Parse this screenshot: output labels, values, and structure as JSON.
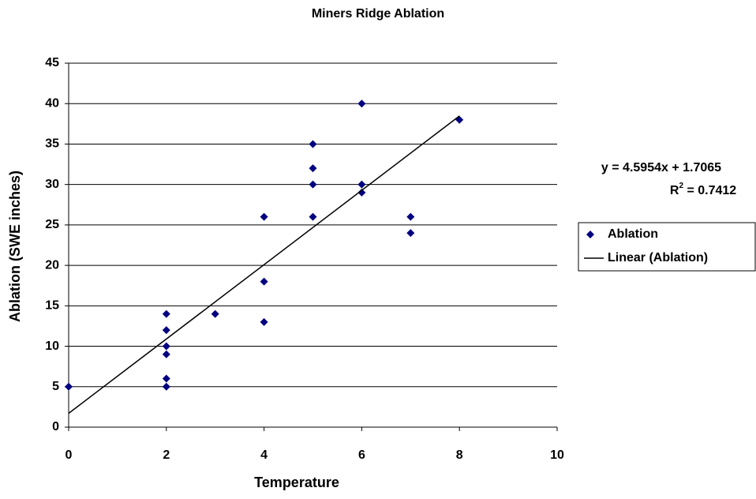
{
  "chart_data": {
    "type": "scatter",
    "title": "Miners Ridge Ablation",
    "x_label": "Temperature",
    "y_label": "Ablation (SWE inches)",
    "series": [
      {
        "name": "Ablation",
        "color": "#000080",
        "x": [
          0,
          2,
          2,
          2,
          2,
          2,
          2,
          3,
          4,
          4,
          4,
          5,
          5,
          5,
          5,
          6,
          6,
          6,
          7,
          7,
          8
        ],
        "values": [
          5,
          14,
          12,
          10,
          9,
          6,
          5,
          14,
          26,
          18,
          13,
          35,
          32,
          30,
          26,
          40,
          30,
          29,
          26,
          24,
          38
        ]
      }
    ],
    "trendline": {
      "name": "Linear (Ablation)",
      "color": "#000000",
      "x": [
        0,
        8
      ],
      "values": [
        1.7065,
        38.4697
      ],
      "equation": "y = 4.5954x + 1.7065",
      "r2_symbol": "R",
      "r2_exponent": "2",
      "r2_value": " = 0.7412"
    },
    "xlim": [
      0,
      10
    ],
    "xticks": [
      0,
      2,
      4,
      6,
      8,
      10
    ],
    "ylim": [
      0,
      45
    ],
    "yticks": [
      0,
      5,
      10,
      15,
      20,
      25,
      30,
      35,
      40,
      45
    ],
    "grid": true,
    "legend": "right"
  }
}
